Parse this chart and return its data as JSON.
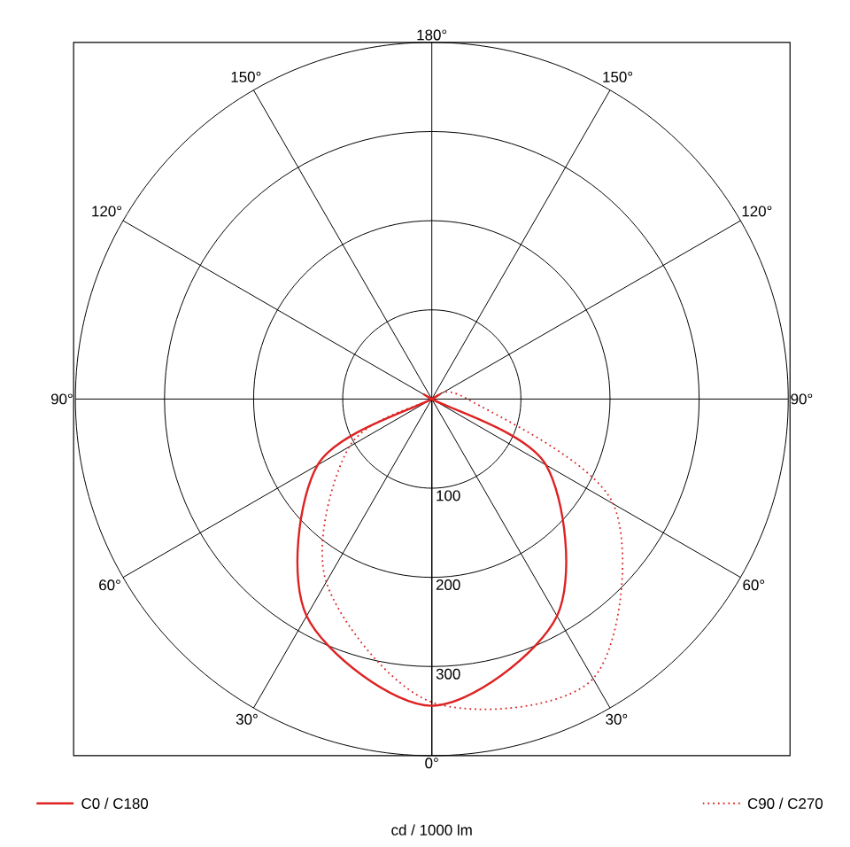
{
  "chart_data": {
    "type": "radar",
    "categories": [
      "180°",
      "150°",
      "120°",
      "90°",
      "60°",
      "30°",
      "0°",
      "30°",
      "60°",
      "90°",
      "120°",
      "150°"
    ],
    "series": [
      {
        "name": "C0 / C180",
        "color": "#dd2222",
        "line_style": "solid",
        "values": [
          0,
          0,
          0,
          0,
          148,
          281,
          344,
          281,
          148,
          0,
          0,
          0
        ]
      },
      {
        "name": "C90 / C270",
        "color": "#dd2222",
        "line_style": "dotted",
        "values": [
          0,
          0,
          0,
          40,
          235,
          362,
          340,
          237,
          107,
          0,
          0,
          0
        ]
      }
    ],
    "ylim": [
      0,
      400
    ],
    "yticks": [
      {
        "value": 100,
        "label": "100"
      },
      {
        "value": 200,
        "label": "200"
      },
      {
        "value": 300,
        "label": "300"
      }
    ],
    "grid": true,
    "legend": "bottom",
    "xlabel": "cd / 1000 lm"
  }
}
